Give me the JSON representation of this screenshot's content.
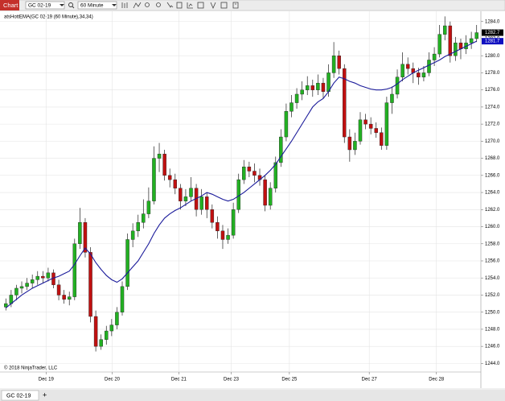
{
  "toolbar": {
    "title": "Chart",
    "instrument": "GC 02-19",
    "interval": "60 Minute"
  },
  "tab": "GC 02-19",
  "chart_data": {
    "type": "candlestick",
    "indicator_label": "atsHottEMA(GC 02-19 (60 Minute),34,34)",
    "copyright": "© 2018 NinjaTrader, LLC",
    "up_color": "#22b022",
    "down_color": "#c01010",
    "ema_color": "#1a1a9a",
    "ylim": [
      1243.0,
      1285.2
    ],
    "yticks": [
      {
        "value": 1244,
        "label": "1244.0"
      },
      {
        "value": 1246,
        "label": "1246.0"
      },
      {
        "value": 1248,
        "label": "1248.0"
      },
      {
        "value": 1250,
        "label": "1250.0"
      },
      {
        "value": 1252,
        "label": "1252.0"
      },
      {
        "value": 1254,
        "label": "1254.0"
      },
      {
        "value": 1256,
        "label": "1256.0"
      },
      {
        "value": 1258,
        "label": "1258.0"
      },
      {
        "value": 1260,
        "label": "1260.0"
      },
      {
        "value": 1262,
        "label": "1262.0"
      },
      {
        "value": 1264,
        "label": "1264.0"
      },
      {
        "value": 1266,
        "label": "1266.0"
      },
      {
        "value": 1268,
        "label": "1268.0"
      },
      {
        "value": 1270,
        "label": "1270.0"
      },
      {
        "value": 1272,
        "label": "1272.0"
      },
      {
        "value": 1274,
        "label": "1274.0"
      },
      {
        "value": 1276,
        "label": "1276.0"
      },
      {
        "value": 1278,
        "label": "1278.0"
      },
      {
        "value": 1280,
        "label": "1280.0"
      },
      {
        "value": 1282,
        "label": "1282.0"
      },
      {
        "value": 1284,
        "label": "1284.0"
      }
    ],
    "xticks": [
      {
        "value": 7.6,
        "label": "Dec 19"
      },
      {
        "value": 20.1,
        "label": "Dec 20"
      },
      {
        "value": 32.7,
        "label": "Dec 21"
      },
      {
        "value": 42.6,
        "label": "Dec 23"
      },
      {
        "value": 53.6,
        "label": "Dec 25"
      },
      {
        "value": 68.7,
        "label": "Dec 27"
      },
      {
        "value": 81.4,
        "label": "Dec 28"
      }
    ],
    "grid": true,
    "price_markers": [
      {
        "value": 1282.7,
        "label": "1282.7",
        "color": "#000000"
      },
      {
        "value": 1281.7,
        "label": "1281.7",
        "color": "#1010c0"
      }
    ],
    "candles": [
      [
        1250.6,
        1251.6,
        1250.2,
        1251
      ],
      [
        1251,
        1252.6,
        1250.6,
        1252
      ],
      [
        1252,
        1253.2,
        1251.4,
        1252.8
      ],
      [
        1252.8,
        1253.6,
        1252.2,
        1253
      ],
      [
        1253,
        1254,
        1252.6,
        1253.4
      ],
      [
        1253.4,
        1254.4,
        1252.8,
        1253.8
      ],
      [
        1253.8,
        1254.8,
        1253.2,
        1254.2
      ],
      [
        1254.2,
        1254.8,
        1253.4,
        1254
      ],
      [
        1254,
        1255.2,
        1253.6,
        1254.6
      ],
      [
        1254.6,
        1255,
        1252.8,
        1253.2
      ],
      [
        1253.2,
        1253.8,
        1251.4,
        1252
      ],
      [
        1252,
        1252.6,
        1251,
        1251.5
      ],
      [
        1251.5,
        1252.4,
        1250.8,
        1251.8
      ],
      [
        1251.8,
        1258.6,
        1251.4,
        1258
      ],
      [
        1258,
        1262.2,
        1257.4,
        1260.5
      ],
      [
        1260.5,
        1261,
        1256.4,
        1257
      ],
      [
        1257,
        1257.6,
        1248.8,
        1249.5
      ],
      [
        1249.5,
        1250.2,
        1245.4,
        1246
      ],
      [
        1246,
        1247.4,
        1245.6,
        1246.8
      ],
      [
        1246.8,
        1248.4,
        1246.2,
        1247.8
      ],
      [
        1247.8,
        1249.2,
        1247.2,
        1248.5
      ],
      [
        1248.5,
        1250.6,
        1248,
        1250
      ],
      [
        1250,
        1253.6,
        1249.6,
        1253
      ],
      [
        1253,
        1259.2,
        1252.6,
        1258.5
      ],
      [
        1258.5,
        1260.4,
        1257.6,
        1259.5
      ],
      [
        1259.5,
        1261.4,
        1258.8,
        1260.5
      ],
      [
        1260.5,
        1263.2,
        1259.8,
        1261.5
      ],
      [
        1261.5,
        1264.6,
        1261,
        1263
      ],
      [
        1263,
        1269.4,
        1262.6,
        1268
      ],
      [
        1268,
        1269.8,
        1266.4,
        1268.5
      ],
      [
        1268.5,
        1269,
        1265.4,
        1266
      ],
      [
        1266,
        1266.8,
        1264.6,
        1265.5
      ],
      [
        1265.5,
        1266.2,
        1263.8,
        1264.5
      ],
      [
        1264.5,
        1265,
        1262,
        1263
      ],
      [
        1263,
        1264.4,
        1262.4,
        1263.5
      ],
      [
        1263.5,
        1265.8,
        1263,
        1264.5
      ],
      [
        1264.5,
        1265,
        1261.2,
        1262
      ],
      [
        1262,
        1264.4,
        1261.4,
        1263.5
      ],
      [
        1263.5,
        1264,
        1261,
        1262
      ],
      [
        1262,
        1262.6,
        1259.8,
        1260.5
      ],
      [
        1260.5,
        1261.2,
        1258.6,
        1259.5
      ],
      [
        1259.5,
        1260.2,
        1257.4,
        1258.5
      ],
      [
        1258.5,
        1259.8,
        1258,
        1259
      ],
      [
        1259,
        1262.8,
        1258.6,
        1262
      ],
      [
        1262,
        1266.2,
        1261.6,
        1265.5
      ],
      [
        1265.5,
        1267.8,
        1265,
        1267
      ],
      [
        1267,
        1267.6,
        1265.8,
        1266.5
      ],
      [
        1266.5,
        1267.4,
        1265.2,
        1266
      ],
      [
        1266,
        1266.8,
        1264.8,
        1265.5
      ],
      [
        1265.5,
        1266,
        1261.8,
        1262.5
      ],
      [
        1262.5,
        1265.2,
        1262,
        1264.5
      ],
      [
        1264.5,
        1268.2,
        1264,
        1267.5
      ],
      [
        1267.5,
        1271.4,
        1267,
        1270.5
      ],
      [
        1270.5,
        1274.4,
        1270,
        1273.5
      ],
      [
        1273.5,
        1275.4,
        1272.8,
        1274.5
      ],
      [
        1274.5,
        1276.2,
        1273.8,
        1275.5
      ],
      [
        1275.5,
        1277,
        1274.8,
        1276
      ],
      [
        1276,
        1277.6,
        1275.4,
        1276.5
      ],
      [
        1276.5,
        1277.2,
        1275.2,
        1276
      ],
      [
        1276,
        1277.8,
        1275.4,
        1276.8
      ],
      [
        1276.8,
        1277.4,
        1275,
        1275.8
      ],
      [
        1275.8,
        1279,
        1275.2,
        1278
      ],
      [
        1278,
        1281.6,
        1277.4,
        1280
      ],
      [
        1280,
        1280.6,
        1277.8,
        1278.5
      ],
      [
        1278.5,
        1279,
        1269.8,
        1270.5
      ],
      [
        1270.5,
        1271.4,
        1267.6,
        1269
      ],
      [
        1269,
        1271,
        1268.4,
        1270
      ],
      [
        1270,
        1273.4,
        1269.6,
        1272.5
      ],
      [
        1272.5,
        1273.2,
        1271.4,
        1272
      ],
      [
        1272,
        1272.8,
        1270.8,
        1271.5
      ],
      [
        1271.5,
        1272.2,
        1270.4,
        1271
      ],
      [
        1271,
        1271.6,
        1269,
        1269.5
      ],
      [
        1269.5,
        1275.2,
        1269,
        1274.5
      ],
      [
        1274.5,
        1276.4,
        1273.2,
        1275.5
      ],
      [
        1275.5,
        1278.4,
        1275,
        1277.5
      ],
      [
        1277.5,
        1280.4,
        1277,
        1279
      ],
      [
        1279,
        1279.8,
        1277.8,
        1278.5
      ],
      [
        1278.5,
        1279.2,
        1276.8,
        1278
      ],
      [
        1278,
        1278.6,
        1276.6,
        1277.5
      ],
      [
        1277.5,
        1278.8,
        1277,
        1278
      ],
      [
        1278,
        1280.4,
        1277.6,
        1279.5
      ],
      [
        1279.5,
        1281,
        1278.8,
        1280.2
      ],
      [
        1280.2,
        1283.6,
        1279.8,
        1282.5
      ],
      [
        1282.5,
        1284.6,
        1281.8,
        1283.5
      ],
      [
        1283.5,
        1284,
        1279.2,
        1280
      ],
      [
        1280,
        1282.2,
        1279.4,
        1281.5
      ],
      [
        1281.5,
        1282,
        1279.6,
        1280.8
      ],
      [
        1280.8,
        1282.4,
        1280.2,
        1281.5
      ],
      [
        1281.5,
        1282.8,
        1280.8,
        1282
      ],
      [
        1282,
        1283.6,
        1281.6,
        1282.7
      ]
    ],
    "ema": [
      1250.5,
      1251.0,
      1251.5,
      1252.0,
      1252.4,
      1252.8,
      1253.1,
      1253.4,
      1253.7,
      1254.0,
      1254.2,
      1254.5,
      1254.8,
      1255.6,
      1256.6,
      1257.5,
      1256.8,
      1255.8,
      1255.0,
      1254.3,
      1253.8,
      1253.5,
      1253.9,
      1254.6,
      1255.3,
      1256.0,
      1257.0,
      1258.0,
      1259.2,
      1260.2,
      1261.0,
      1261.5,
      1261.9,
      1262.2,
      1262.6,
      1263.0,
      1263.3,
      1263.6,
      1264.0,
      1263.8,
      1263.5,
      1263.2,
      1263.0,
      1263.2,
      1263.6,
      1264.0,
      1264.5,
      1265.0,
      1265.5,
      1266.0,
      1266.6,
      1267.3,
      1268.2,
      1269.1,
      1270.0,
      1271.0,
      1272.0,
      1273.0,
      1274.0,
      1274.6,
      1275.0,
      1275.8,
      1276.8,
      1277.5,
      1277.3,
      1277.0,
      1276.8,
      1276.5,
      1276.3,
      1276.1,
      1276.0,
      1276.0,
      1276.1,
      1276.3,
      1276.7,
      1277.2,
      1277.6,
      1278.0,
      1278.3,
      1278.6,
      1278.9,
      1279.2,
      1279.5,
      1279.9,
      1280.2,
      1280.5,
      1280.8,
      1281.1,
      1281.4,
      1281.7
    ]
  }
}
